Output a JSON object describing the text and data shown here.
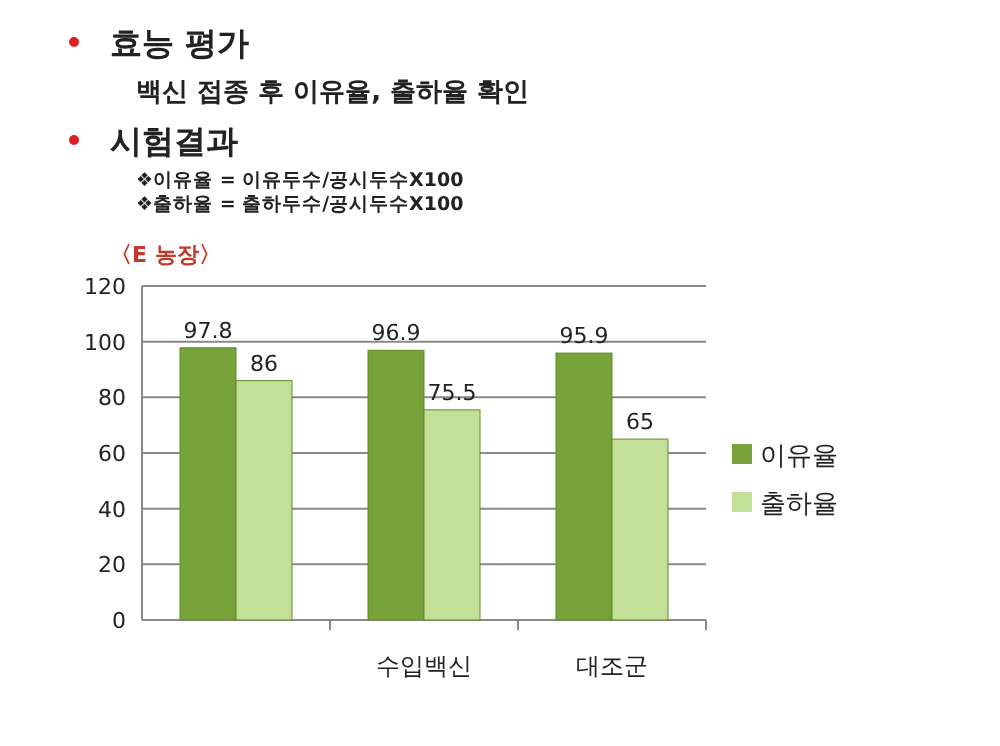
{
  "chart_data": {
    "type": "bar",
    "title": "효능 평가",
    "subtitle": "백신 접종 후 이유율, 출하율 확인",
    "annotations": [
      "시험결과",
      "❖이유율 = 이유두수/공시두수X100",
      "❖출하율 = 출하두수/공시두수X100",
      "〈E 농장〉"
    ],
    "categories": [
      null,
      "수입백신",
      "대조군"
    ],
    "series": [
      {
        "name": "이유율",
        "color": "#77a33a",
        "values": [
          97.8,
          96.9,
          95.9
        ]
      },
      {
        "name": "출하율",
        "color": "#c4df98",
        "values": [
          86,
          75.5,
          65
        ]
      }
    ],
    "ylim": [
      0,
      120
    ],
    "yticks": [
      0,
      20,
      40,
      60,
      80,
      100,
      120
    ],
    "grid": "y",
    "legend": "right",
    "data_labels": true
  }
}
